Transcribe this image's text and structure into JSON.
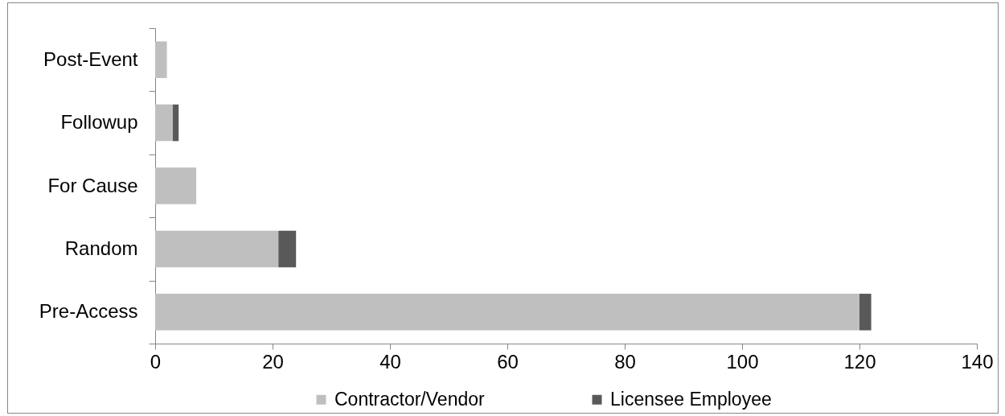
{
  "chart_data": {
    "type": "bar",
    "orientation": "horizontal",
    "stacked": true,
    "categories": [
      "Post-Event",
      "Followup",
      "For Cause",
      "Random",
      "Pre-Access"
    ],
    "series": [
      {
        "name": "Contractor/Vendor",
        "color": "#bfbfbf",
        "values": [
          2,
          3,
          7,
          21,
          120
        ]
      },
      {
        "name": "Licensee Employee",
        "color": "#595959",
        "values": [
          null,
          1,
          null,
          3,
          2
        ]
      }
    ],
    "xlim": [
      0,
      140
    ],
    "xticks": [
      0,
      20,
      40,
      60,
      80,
      100,
      120,
      140
    ],
    "grid": false,
    "legend": "bottom"
  }
}
